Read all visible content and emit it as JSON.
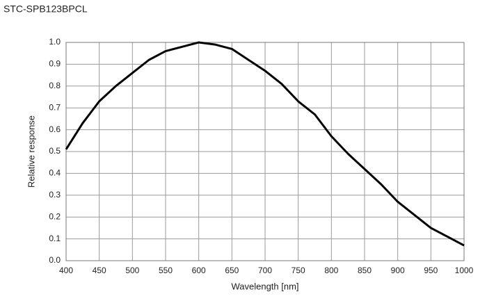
{
  "chart_data": {
    "type": "line",
    "title": "STC-SPB123BPCL",
    "xlabel": "Wavelength  [nm]",
    "ylabel": "Relative  response",
    "x": [
      400,
      425,
      450,
      475,
      500,
      525,
      550,
      575,
      600,
      625,
      650,
      675,
      700,
      725,
      750,
      775,
      800,
      825,
      850,
      875,
      900,
      925,
      950,
      975,
      1000
    ],
    "series": [
      {
        "color": "#000000",
        "values": [
          0.51,
          0.63,
          0.73,
          0.8,
          0.86,
          0.92,
          0.96,
          0.98,
          1.0,
          0.99,
          0.97,
          0.92,
          0.87,
          0.81,
          0.73,
          0.67,
          0.57,
          0.49,
          0.42,
          0.35,
          0.27,
          0.21,
          0.15,
          0.11,
          0.07
        ]
      }
    ],
    "xlim": [
      400,
      1000
    ],
    "xticks": [
      400,
      450,
      500,
      550,
      600,
      650,
      700,
      750,
      800,
      850,
      900,
      950,
      1000
    ],
    "ylim": [
      0,
      1
    ],
    "yticks": [
      {
        "value": 0,
        "label": "0.0"
      },
      0.1,
      0.2,
      0.3,
      0.4,
      0.5,
      0.6,
      0.7,
      0.8,
      0.9,
      {
        "value": 1,
        "label": "1.0"
      }
    ],
    "grid": true
  }
}
